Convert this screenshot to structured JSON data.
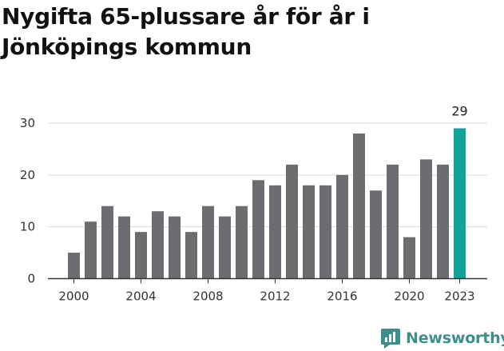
{
  "title": "Nygifta 65-plussare år för år i Jönköpings kommun",
  "brand": "Newsworthy",
  "colors": {
    "bar": "#6d6c71",
    "highlight": "#12a39b",
    "brand": "#3d8f8a",
    "grid": "#d9d9d9"
  },
  "chart_data": {
    "type": "bar",
    "x": [
      2000,
      2001,
      2002,
      2003,
      2004,
      2005,
      2006,
      2007,
      2008,
      2009,
      2010,
      2011,
      2012,
      2013,
      2014,
      2015,
      2016,
      2017,
      2018,
      2019,
      2020,
      2021,
      2022,
      2023
    ],
    "values": [
      5,
      11,
      14,
      12,
      9,
      13,
      12,
      9,
      14,
      12,
      14,
      19,
      18,
      22,
      18,
      18,
      20,
      28,
      17,
      22,
      8,
      23,
      22,
      29
    ],
    "xticks": [
      "2000",
      "2004",
      "2008",
      "2012",
      "2016",
      "2020",
      "2023"
    ],
    "yticks": [
      "0",
      "10",
      "20",
      "30"
    ],
    "ylim": [
      0,
      30
    ],
    "highlight": {
      "x": 2023,
      "label": "29"
    },
    "grid": true,
    "legend": "none"
  }
}
